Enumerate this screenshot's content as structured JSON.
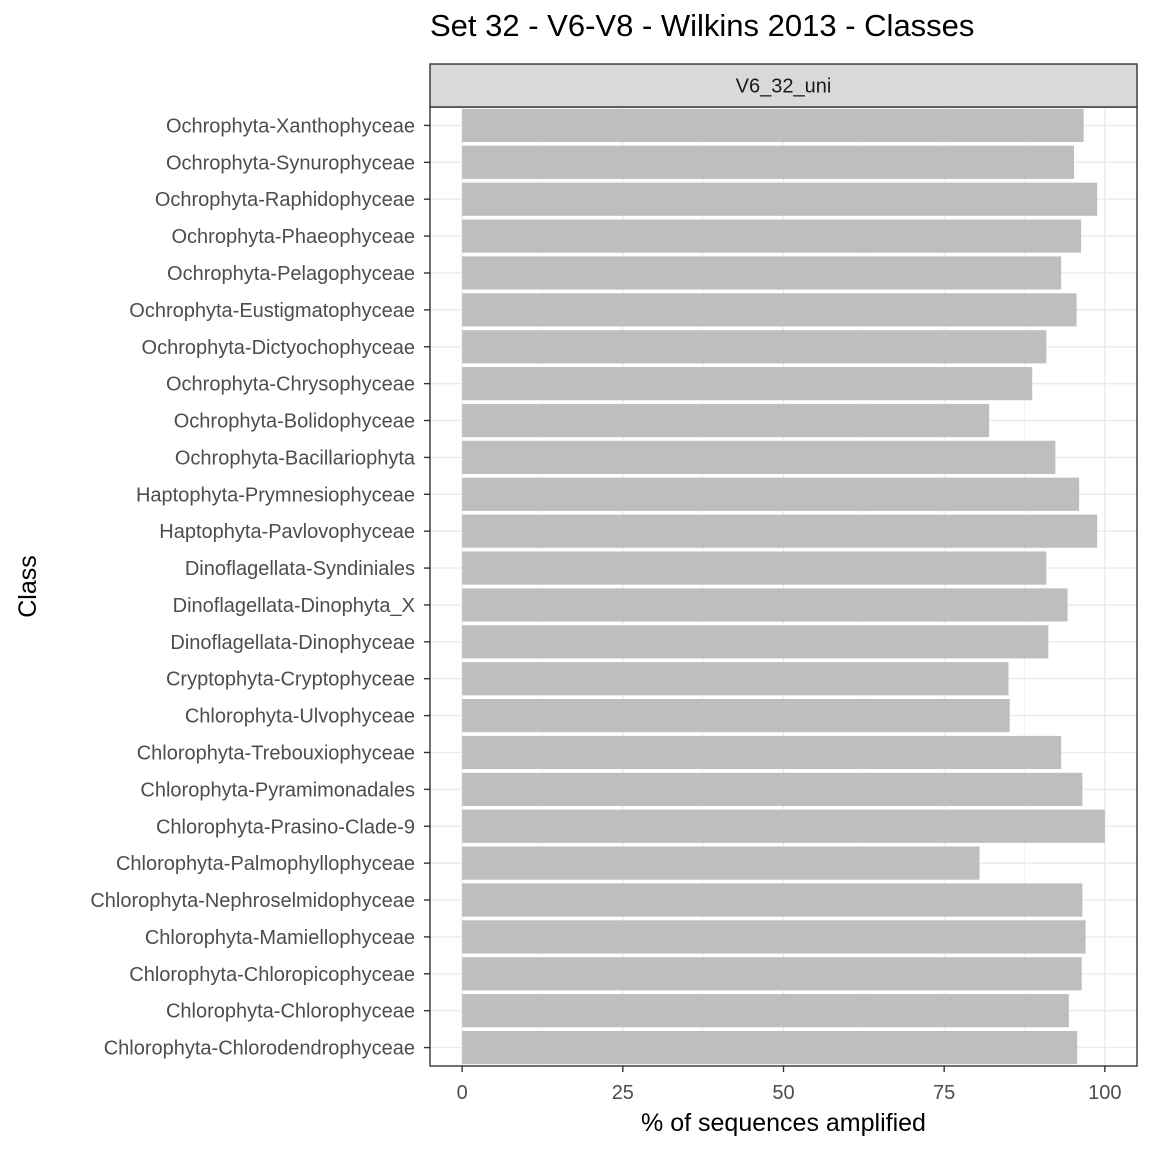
{
  "chart_data": {
    "type": "bar",
    "orientation": "horizontal",
    "title": "Set 32 - V6-V8 - Wilkins 2013 - Classes",
    "facet_label": "V6_32_uni",
    "xlabel": "% of sequences amplified",
    "ylabel": "Class",
    "xlim": [
      -5,
      105
    ],
    "x_ticks": [
      0,
      25,
      50,
      75,
      100
    ],
    "x_tick_labels": [
      "0",
      "25",
      "50",
      "75",
      "100"
    ],
    "grid": true,
    "bar_color": "#bebebe",
    "categories": [
      "Ochrophyta-Xanthophyceae",
      "Ochrophyta-Synurophyceae",
      "Ochrophyta-Raphidophyceae",
      "Ochrophyta-Phaeophyceae",
      "Ochrophyta-Pelagophyceae",
      "Ochrophyta-Eustigmatophyceae",
      "Ochrophyta-Dictyochophyceae",
      "Ochrophyta-Chrysophyceae",
      "Ochrophyta-Bolidophyceae",
      "Ochrophyta-Bacillariophyta",
      "Haptophyta-Prymnesiophyceae",
      "Haptophyta-Pavlovophyceae",
      "Dinoflagellata-Syndiniales",
      "Dinoflagellata-Dinophyta_X",
      "Dinoflagellata-Dinophyceae",
      "Cryptophyta-Cryptophyceae",
      "Chlorophyta-Ulvophyceae",
      "Chlorophyta-Trebouxiophyceae",
      "Chlorophyta-Pyramimonadales",
      "Chlorophyta-Prasino-Clade-9",
      "Chlorophyta-Palmophyllophyceae",
      "Chlorophyta-Nephroselmidophyceae",
      "Chlorophyta-Mamiellophyceae",
      "Chlorophyta-Chloropicophyceae",
      "Chlorophyta-Chlorophyceae",
      "Chlorophyta-Chlorodendrophyceae"
    ],
    "values": [
      96.7,
      95.2,
      98.8,
      96.3,
      93.2,
      95.6,
      90.9,
      88.7,
      82.0,
      92.3,
      96.0,
      98.8,
      90.9,
      94.2,
      91.2,
      85.0,
      85.2,
      93.2,
      96.5,
      100.0,
      80.5,
      96.5,
      97.0,
      96.4,
      94.4,
      95.7
    ]
  }
}
